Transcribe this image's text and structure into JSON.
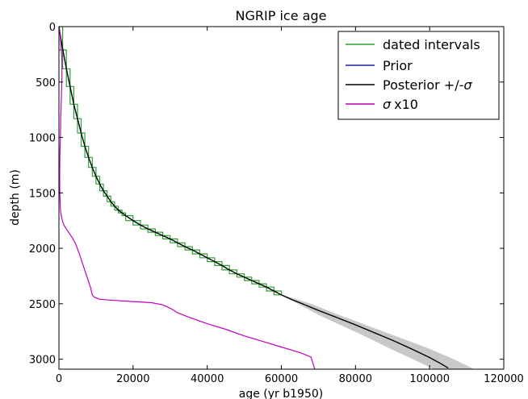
{
  "chart_data": {
    "type": "line",
    "title": "NGRIP ice age",
    "xlabel": "age (yr b1950)",
    "ylabel": "depth (m)",
    "xlim": [
      0,
      120000
    ],
    "ylim": [
      3090,
      0
    ],
    "y_inverted": true,
    "xticks": [
      0,
      20000,
      40000,
      60000,
      80000,
      100000,
      120000
    ],
    "yticks": [
      0,
      500,
      1000,
      1500,
      2000,
      2500,
      3000
    ],
    "legend": {
      "location": "top-right",
      "entries": [
        {
          "label": "dated intervals",
          "color": "#2ca02c"
        },
        {
          "label": "Prior",
          "color": "#1f1fb4"
        },
        {
          "label": "Posterior +/-",
          "label_symbol": "σ",
          "color": "#000000"
        },
        {
          "label": "x10",
          "label_symbol": "σ",
          "color": "#bf00bf"
        }
      ]
    },
    "series": [
      {
        "name": "dated intervals",
        "style": "step",
        "color": "#2ca02c",
        "age": [
          0,
          1000,
          2000,
          3000,
          4000,
          5000,
          6000,
          7000,
          8000,
          9000,
          10000,
          11000,
          12000,
          13000,
          14000,
          15000,
          16000,
          17000,
          18000,
          20000,
          22000,
          24000,
          26000,
          28000,
          30000,
          32000,
          34000,
          36000,
          38000,
          40000,
          42000,
          44000,
          46000,
          48000,
          50000,
          52000,
          54000,
          56000,
          58000,
          60000
        ],
        "depth": [
          0,
          210,
          380,
          540,
          700,
          830,
          960,
          1080,
          1180,
          1270,
          1350,
          1420,
          1480,
          1530,
          1580,
          1620,
          1655,
          1680,
          1705,
          1750,
          1790,
          1825,
          1855,
          1885,
          1915,
          1950,
          1985,
          2015,
          2050,
          2085,
          2120,
          2155,
          2195,
          2230,
          2260,
          2290,
          2320,
          2350,
          2385,
          2420
        ]
      },
      {
        "name": "Prior",
        "color": "#1f1fb4",
        "age": [
          0,
          500,
          1000,
          2000,
          3000,
          4000,
          5000,
          6000,
          7000,
          8000,
          9000,
          10000,
          11000,
          12000,
          13000,
          14000,
          15000,
          16000,
          18000,
          20000,
          22000,
          24000,
          26000,
          28000,
          30000,
          32000,
          34000,
          36000,
          38000,
          40000,
          42000,
          44000,
          46000,
          48000,
          50000,
          52000,
          54000,
          56000,
          58000,
          60000,
          63000,
          66000,
          70000,
          75000,
          80000,
          85000,
          90000,
          95000,
          100000,
          103000,
          105000
        ],
        "depth": [
          0,
          100,
          200,
          380,
          540,
          700,
          830,
          960,
          1080,
          1180,
          1270,
          1350,
          1420,
          1480,
          1530,
          1580,
          1620,
          1655,
          1705,
          1750,
          1790,
          1825,
          1855,
          1885,
          1915,
          1950,
          1985,
          2015,
          2050,
          2085,
          2120,
          2155,
          2195,
          2230,
          2260,
          2290,
          2320,
          2350,
          2385,
          2420,
          2465,
          2505,
          2560,
          2625,
          2690,
          2760,
          2830,
          2905,
          2985,
          3040,
          3080
        ]
      },
      {
        "name": "Posterior +/-σ",
        "color": "#000000",
        "age": [
          0,
          500,
          1000,
          2000,
          3000,
          4000,
          5000,
          6000,
          7000,
          8000,
          9000,
          10000,
          11000,
          12000,
          13000,
          14000,
          15000,
          16000,
          18000,
          20000,
          22000,
          24000,
          26000,
          28000,
          30000,
          32000,
          34000,
          36000,
          38000,
          40000,
          42000,
          44000,
          46000,
          48000,
          50000,
          52000,
          54000,
          56000,
          58000,
          60000,
          63000,
          66000,
          70000,
          75000,
          80000,
          85000,
          90000,
          95000,
          100000,
          103000,
          105000
        ],
        "depth": [
          0,
          100,
          200,
          380,
          540,
          700,
          830,
          960,
          1080,
          1180,
          1270,
          1350,
          1420,
          1480,
          1530,
          1580,
          1620,
          1655,
          1705,
          1750,
          1790,
          1825,
          1855,
          1885,
          1915,
          1950,
          1985,
          2015,
          2050,
          2085,
          2120,
          2155,
          2195,
          2230,
          2260,
          2290,
          2320,
          2350,
          2385,
          2420,
          2465,
          2505,
          2560,
          2625,
          2690,
          2760,
          2830,
          2905,
          2985,
          3040,
          3080
        ],
        "band_depth": [
          2420,
          2500,
          2600,
          2700,
          2800,
          2900,
          3000,
          3090
        ],
        "band_age_low": [
          59800,
          64500,
          70000,
          76500,
          83000,
          89000,
          95500,
          101000
        ],
        "band_age_high": [
          60200,
          68000,
          75500,
          83500,
          91500,
          99500,
          106500,
          112000
        ],
        "band_color": "#c8c8c8"
      },
      {
        "name": "σ x10",
        "color": "#bf00bf",
        "age": [
          0,
          200,
          400,
          600,
          800,
          800,
          700,
          500,
          400,
          300,
          250,
          200,
          200,
          250,
          300,
          350,
          400,
          600,
          1000,
          1500,
          2500,
          3500,
          4500,
          5500,
          6500,
          7500,
          8500,
          9000,
          9500,
          11000,
          15000,
          20000,
          25000,
          28000,
          30000,
          32000,
          35000,
          40000,
          45000,
          50000,
          55000,
          60000,
          65000,
          68000,
          69000
        ],
        "depth": [
          0,
          50,
          100,
          200,
          300,
          450,
          600,
          800,
          1000,
          1100,
          1200,
          1300,
          1400,
          1500,
          1560,
          1600,
          1650,
          1700,
          1760,
          1800,
          1850,
          1900,
          1960,
          2050,
          2150,
          2250,
          2350,
          2420,
          2440,
          2460,
          2470,
          2480,
          2490,
          2510,
          2540,
          2580,
          2620,
          2680,
          2730,
          2790,
          2840,
          2890,
          2940,
          2980,
          3090
        ]
      }
    ]
  }
}
